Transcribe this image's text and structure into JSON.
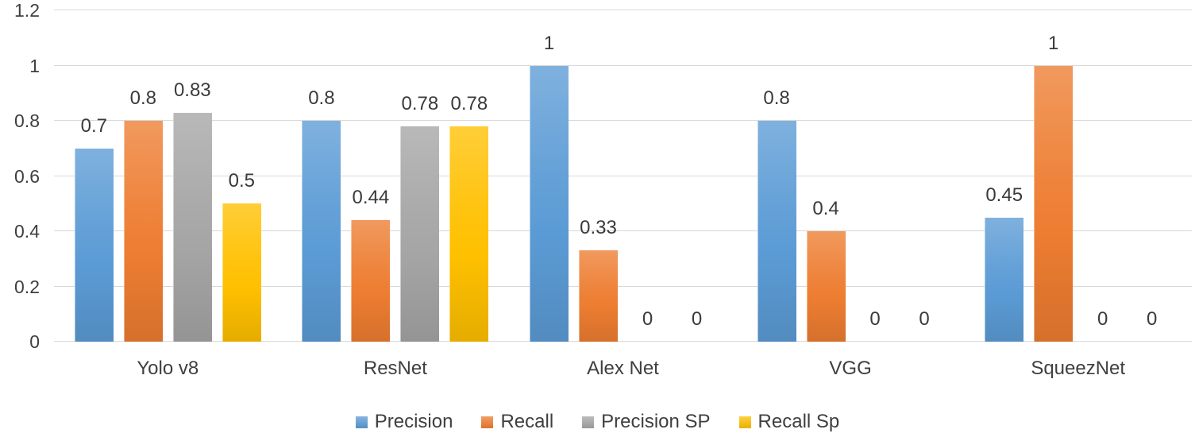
{
  "chart_data": {
    "type": "bar",
    "title": "",
    "xlabel": "",
    "ylabel": "",
    "ylim": [
      0,
      1.2
    ],
    "grid": true,
    "legend_position": "bottom",
    "categories": [
      "Yolo v8",
      "ResNet",
      "Alex Net",
      "VGG",
      "SqueezNet"
    ],
    "series": [
      {
        "name": "Precision",
        "color": "#5B9BD5",
        "values": [
          0.7,
          0.8,
          1,
          0.8,
          0.45
        ],
        "labels": [
          "0.7",
          "0.8",
          "1",
          "0.8",
          "0.45"
        ]
      },
      {
        "name": "Recall",
        "color": "#ED7D31",
        "values": [
          0.8,
          0.44,
          0.33,
          0.4,
          1
        ],
        "labels": [
          "0.8",
          "0.44",
          "0.33",
          "0.4",
          "1"
        ]
      },
      {
        "name": "Precision SP",
        "color": "#A5A5A5",
        "values": [
          0.83,
          0.78,
          0,
          0,
          0
        ],
        "labels": [
          "0.83",
          "0.78",
          "0",
          "0",
          "0"
        ]
      },
      {
        "name": "Recall Sp",
        "color": "#FFC000",
        "values": [
          0.5,
          0.78,
          0,
          0,
          0
        ],
        "labels": [
          "0.5",
          "0.78",
          "0",
          "0",
          "0"
        ]
      }
    ],
    "y_ticks": [
      {
        "value": 0,
        "label": "0"
      },
      {
        "value": 0.2,
        "label": "0.2"
      },
      {
        "value": 0.4,
        "label": "0.4"
      },
      {
        "value": 0.6,
        "label": "0.6"
      },
      {
        "value": 0.8,
        "label": "0.8"
      },
      {
        "value": 1,
        "label": "1"
      },
      {
        "value": 1.2,
        "label": "1.2"
      }
    ],
    "colors": {
      "gridline": "#D9D9D9",
      "text": "#3F3F3F",
      "background": "#FFFFFF"
    }
  }
}
